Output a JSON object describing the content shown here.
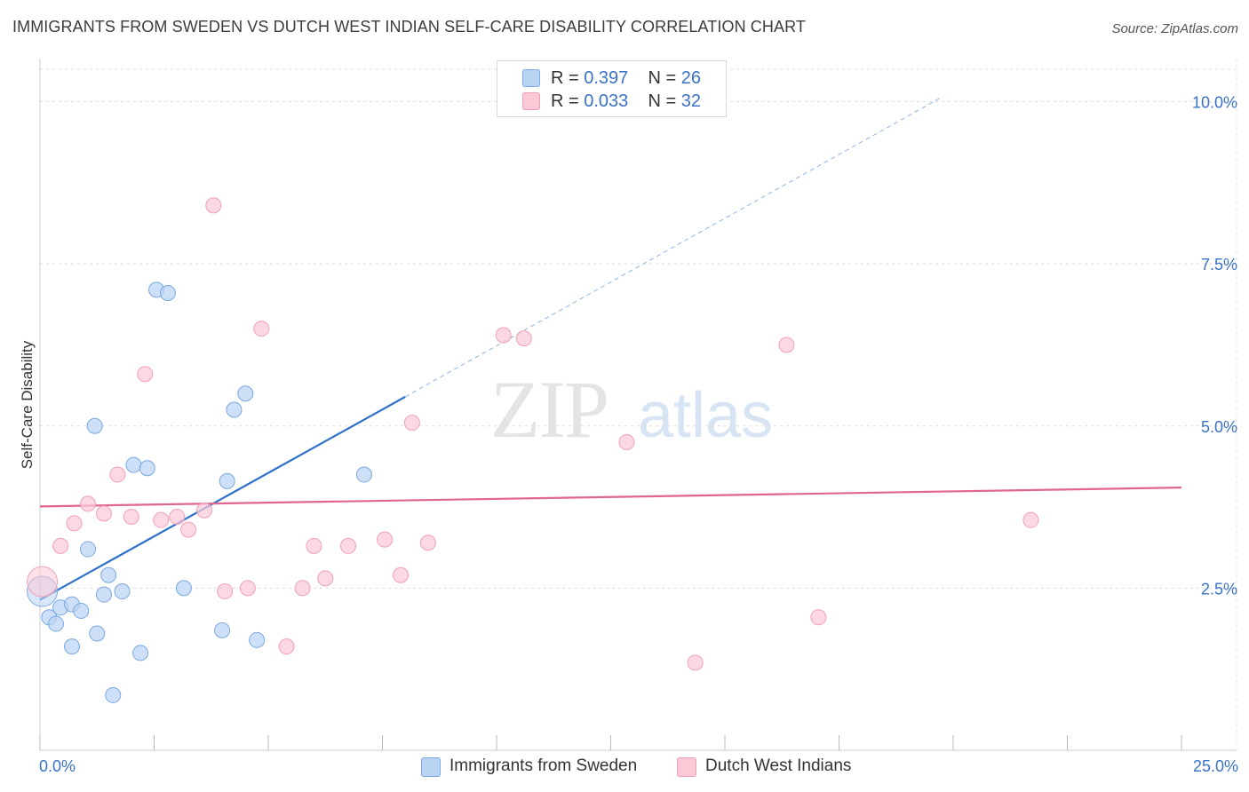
{
  "title": "IMMIGRANTS FROM SWEDEN VS DUTCH WEST INDIAN SELF-CARE DISABILITY CORRELATION CHART",
  "source": "Source: ZipAtlas.com",
  "watermark": {
    "zip": "ZIP",
    "atlas": "atlas"
  },
  "legend": [
    {
      "r_label": "R = ",
      "r_value": "0.397",
      "n_label": "N = ",
      "n_value": "26"
    },
    {
      "r_label": "R = ",
      "r_value": "0.033",
      "n_label": "N = ",
      "n_value": "32"
    }
  ],
  "colors": {
    "sweden_fill": "#b9d3f3",
    "sweden_stroke": "#7aa8e0",
    "sweden_line": "#2f72cc",
    "dutch_fill": "#fbc9d6",
    "dutch_stroke": "#f0a0b8",
    "dutch_line": "#e06592",
    "grid": "#dddddd",
    "tick_label": "#3a72c8"
  },
  "chart_data": {
    "type": "scatter",
    "xlabel": "",
    "ylabel": "Self-Care Disability",
    "xlim": [
      0,
      25
    ],
    "ylim": [
      0,
      10.5
    ],
    "x_tick_labels": [
      "0.0%",
      "25.0%"
    ],
    "y_ticks": [
      2.5,
      5.0,
      7.5,
      10.0
    ],
    "y_tick_labels": [
      "2.5%",
      "5.0%",
      "7.5%",
      "10.0%"
    ],
    "grid": true,
    "legend_position": "top-center",
    "series": [
      {
        "name": "Immigrants from Sweden",
        "points": [
          [
            0.05,
            2.45
          ],
          [
            0.2,
            2.05
          ],
          [
            0.35,
            1.95
          ],
          [
            0.45,
            2.2
          ],
          [
            0.7,
            2.25
          ],
          [
            0.9,
            2.15
          ],
          [
            0.7,
            1.6
          ],
          [
            1.05,
            3.1
          ],
          [
            1.2,
            5.0
          ],
          [
            1.25,
            1.8
          ],
          [
            1.4,
            2.4
          ],
          [
            1.5,
            2.7
          ],
          [
            1.6,
            0.85
          ],
          [
            1.8,
            2.45
          ],
          [
            2.05,
            4.4
          ],
          [
            2.2,
            1.5
          ],
          [
            2.35,
            4.35
          ],
          [
            2.55,
            7.1
          ],
          [
            2.8,
            7.05
          ],
          [
            3.15,
            2.5
          ],
          [
            3.99,
            1.85
          ],
          [
            4.1,
            4.15
          ],
          [
            4.25,
            5.25
          ],
          [
            4.5,
            5.5
          ],
          [
            4.75,
            1.7
          ],
          [
            7.1,
            4.25
          ]
        ],
        "trend": {
          "x": [
            0.0,
            8.0
          ],
          "y": [
            2.32,
            5.45
          ],
          "extended_x": [
            8.0,
            19.7
          ],
          "extended_y": [
            5.45,
            10.05
          ]
        }
      },
      {
        "name": "Dutch West Indians",
        "points": [
          [
            0.05,
            2.6
          ],
          [
            0.45,
            3.15
          ],
          [
            0.75,
            3.5
          ],
          [
            1.05,
            3.8
          ],
          [
            1.4,
            3.65
          ],
          [
            1.7,
            4.25
          ],
          [
            2.0,
            3.6
          ],
          [
            2.3,
            5.8
          ],
          [
            2.65,
            3.55
          ],
          [
            3.0,
            3.6
          ],
          [
            3.25,
            3.4
          ],
          [
            3.6,
            3.7
          ],
          [
            3.8,
            8.4
          ],
          [
            4.05,
            2.45
          ],
          [
            4.55,
            2.5
          ],
          [
            4.85,
            6.5
          ],
          [
            5.4,
            1.6
          ],
          [
            5.75,
            2.5
          ],
          [
            6.0,
            3.15
          ],
          [
            6.25,
            2.65
          ],
          [
            6.75,
            3.15
          ],
          [
            7.55,
            3.25
          ],
          [
            7.9,
            2.7
          ],
          [
            8.15,
            5.05
          ],
          [
            8.5,
            3.2
          ],
          [
            10.15,
            6.4
          ],
          [
            10.6,
            6.35
          ],
          [
            12.85,
            4.75
          ],
          [
            14.35,
            1.35
          ],
          [
            16.35,
            6.25
          ],
          [
            17.05,
            2.05
          ],
          [
            21.7,
            3.55
          ]
        ],
        "trend": {
          "x": [
            0.0,
            25.0
          ],
          "y": [
            3.76,
            4.05
          ]
        }
      }
    ]
  }
}
